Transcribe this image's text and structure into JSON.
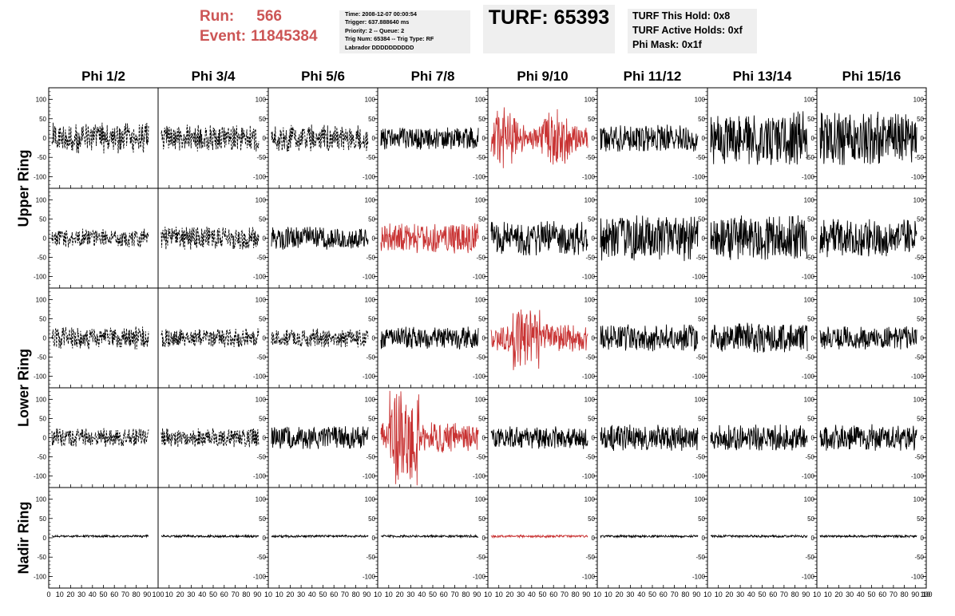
{
  "header": {
    "run_label": "Run:",
    "run_value": "566",
    "event_label": "Event:",
    "event_value": "11845384",
    "trigger_lines": [
      "Time: 2008-12-07 00:00:54",
      "Trigger: 637.888640 ms",
      "Priority: 2 -- Queue: 2",
      "Trig Num: 65384 -- Trig Type: RF",
      "Labrador DDDDDDDDDD"
    ],
    "turf_title": "TURF: 65393",
    "hold_lines": [
      "TURF This Hold: 0x8",
      "TURF Active Holds: 0xf",
      "Phi Mask: 0x1f"
    ]
  },
  "phi_sectors": [
    "Phi 1/2",
    "Phi 3/4",
    "Phi 5/6",
    "Phi 7/8",
    "Phi 9/10",
    "Phi 11/12",
    "Phi 13/14",
    "Phi 15/16"
  ],
  "rings": [
    "Upper Ring",
    "Lower Ring",
    "Nadir Ring"
  ],
  "axes": {
    "y_ticks": [
      100,
      50,
      0,
      -50,
      -100
    ],
    "y_range": [
      -130,
      130
    ],
    "x_range": [
      0,
      100
    ],
    "x_tick_labels": [
      "0",
      "10",
      "20",
      "30",
      "40",
      "50",
      "60",
      "70",
      "80",
      "90",
      "100"
    ],
    "x_tick_labels_compact": [
      "10",
      "20",
      "30",
      "40",
      "50",
      "60",
      "70",
      "80",
      "90",
      "10"
    ]
  },
  "colors": {
    "trace": "#000000",
    "highlight": "#c83232",
    "run_event_text": "#cc5555",
    "info_box_bg": "#efefef"
  },
  "highlighted_cells": [
    [
      0,
      4
    ],
    [
      1,
      3
    ],
    [
      2,
      4
    ],
    [
      3,
      3
    ],
    [
      4,
      4
    ]
  ],
  "dashed_cells": [
    [
      0,
      0
    ],
    [
      0,
      1
    ],
    [
      0,
      2
    ],
    [
      1,
      0
    ],
    [
      1,
      1
    ],
    [
      2,
      0
    ],
    [
      2,
      1
    ],
    [
      2,
      2
    ],
    [
      3,
      0
    ],
    [
      3,
      1
    ]
  ],
  "rows": 5,
  "cols": 8
}
